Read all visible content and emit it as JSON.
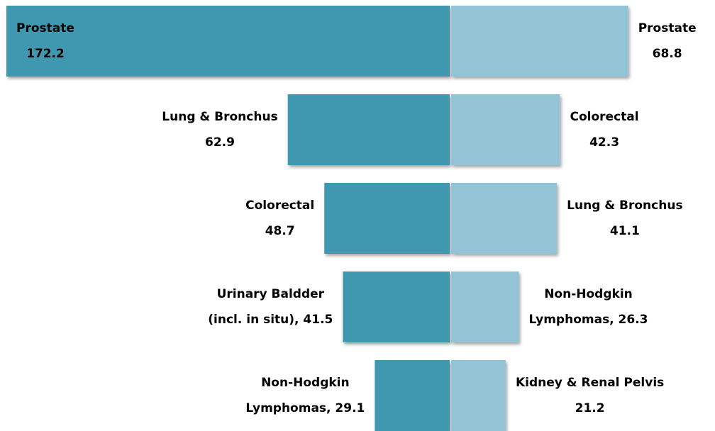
{
  "chart_data": {
    "type": "butterfly-bar",
    "series": [
      {
        "color": "#3f98b0",
        "values": [
          172.2,
          62.9,
          48.7,
          41.5,
          29.1
        ],
        "label_lines": [
          [
            "Prostate",
            "172.2"
          ],
          [
            "Lung & Bronchus",
            "62.9"
          ],
          [
            "Colorectal",
            "48.7"
          ],
          [
            "Urinary Baldder",
            "(incl. in situ), 41.5"
          ],
          [
            "Non-Hodgkin",
            "Lymphomas, 29.1"
          ]
        ]
      },
      {
        "color": "#93c4d6",
        "values": [
          68.8,
          42.3,
          41.1,
          26.3,
          21.2
        ],
        "label_lines": [
          [
            "Prostate",
            "68.8"
          ],
          [
            "Colorectal",
            "42.3"
          ],
          [
            "Lung & Bronchus",
            "41.1"
          ],
          [
            "Non-Hodgkin",
            "Lymphomas,  26.3"
          ],
          [
            "Kidney & Renal Pelvis",
            "21.2"
          ]
        ]
      }
    ]
  }
}
